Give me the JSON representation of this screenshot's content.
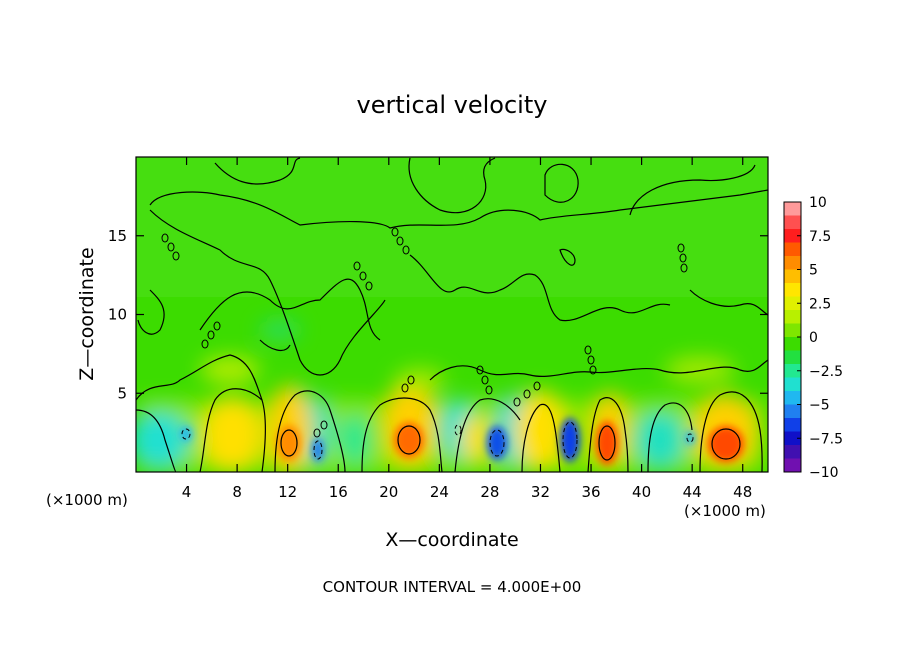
{
  "chart_data": {
    "type": "heatmap",
    "title": "vertical velocity",
    "xlabel": "X—coordinate",
    "ylabel": "Z—coordinate",
    "x_unit_left": "(×1000 m)",
    "x_unit_right": "(×1000 m)",
    "xlim": [
      0,
      50
    ],
    "ylim": [
      0,
      20
    ],
    "x_ticks": [
      4,
      8,
      12,
      16,
      20,
      24,
      28,
      32,
      36,
      40,
      44,
      48
    ],
    "x_tick_labels": [
      "4",
      "8",
      "12",
      "16",
      "20",
      "24",
      "28",
      "32",
      "36",
      "40",
      "44",
      "48"
    ],
    "y_ticks": [
      5,
      10,
      15
    ],
    "y_tick_labels": [
      "5",
      "10",
      "15"
    ],
    "colorbar": {
      "range": [
        -10,
        10
      ],
      "labels": [
        "10",
        "7.5",
        "5",
        "2.5",
        "0",
        "−2.5",
        "−5",
        "−7.5",
        "−10"
      ],
      "label_values": [
        10,
        7.5,
        5,
        2.5,
        0,
        -2.5,
        -5,
        -7.5,
        -10
      ],
      "colors": [
        "#ff9a9a",
        "#ff5050",
        "#ff1e1e",
        "#ff5a00",
        "#ff8c00",
        "#ffbe00",
        "#ffe600",
        "#e0f000",
        "#b8f000",
        "#7ee600",
        "#3cdc00",
        "#22e040",
        "#22e890",
        "#20e0d0",
        "#20b8f0",
        "#2080f0",
        "#1040e8",
        "#1010c8",
        "#4010b0",
        "#7010b0"
      ]
    },
    "grid": false,
    "legend_position": "right",
    "features": [
      {
        "kind": "updraft",
        "x": 12.2,
        "z": 1.8,
        "w": 6
      },
      {
        "kind": "updraft",
        "x": 21.8,
        "z": 2.1,
        "w": 7
      },
      {
        "kind": "updraft",
        "x": 37.3,
        "z": 1.9,
        "w": 8
      },
      {
        "kind": "updraft",
        "x": 46.2,
        "z": 1.8,
        "w": 8
      },
      {
        "kind": "updraft",
        "x": 8.0,
        "z": 1.6,
        "w": 3
      },
      {
        "kind": "updraft",
        "x": 32.0,
        "z": 1.8,
        "w": 3
      },
      {
        "kind": "downdraft",
        "x": 34.2,
        "z": 1.8,
        "w": -7
      },
      {
        "kind": "downdraft",
        "x": 28.8,
        "z": 1.6,
        "w": -6
      },
      {
        "kind": "downdraft",
        "x": 14.4,
        "z": 1.2,
        "w": -5
      },
      {
        "kind": "downdraft",
        "x": 4.0,
        "z": 2.2,
        "w": -4
      },
      {
        "kind": "downdraft",
        "x": 43.8,
        "z": 2.0,
        "w": -3
      }
    ],
    "contour_interval_text": "CONTOUR INTERVAL = 4.000E+00"
  }
}
